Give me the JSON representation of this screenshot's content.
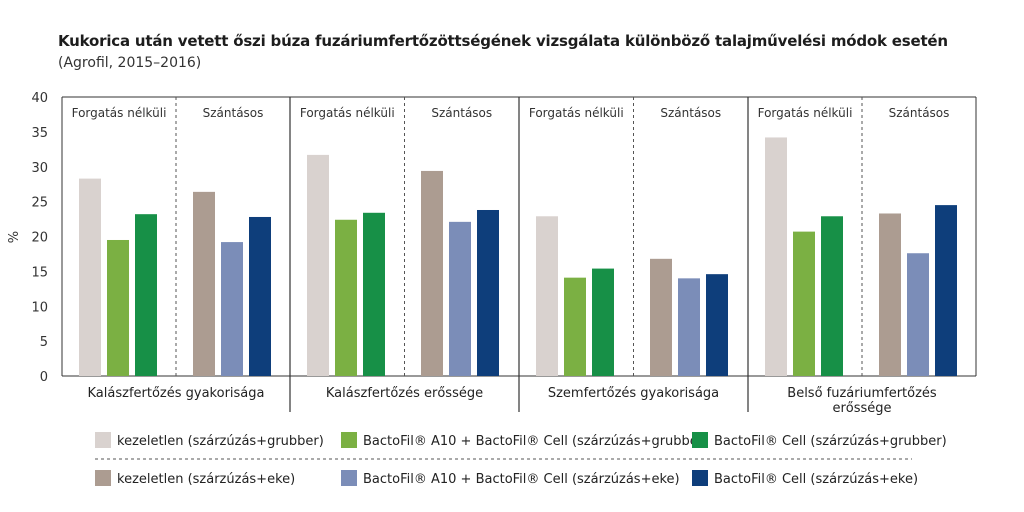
{
  "title": "Kukorica után vetett őszi búza fuzáriumfertőzöttségének vizsgálata különböző talajművelési módok esetén",
  "subtitle": "(Agrofil, 2015–2016)",
  "chart_data": {
    "type": "bar",
    "ylabel": "%",
    "ylim": [
      0,
      40
    ],
    "yticks": [
      0,
      5,
      10,
      15,
      20,
      25,
      30,
      35,
      40
    ],
    "groups": [
      {
        "label": [
          "Kalászfertőzés gyakorisága"
        ],
        "subgroups": [
          {
            "label": "Forgatás nélküli",
            "values": [
              28.3,
              19.5,
              23.2
            ]
          },
          {
            "label": "Szántásos",
            "values": [
              26.4,
              19.2,
              22.8
            ]
          }
        ]
      },
      {
        "label": [
          "Kalászfertőzés erőssége"
        ],
        "subgroups": [
          {
            "label": "Forgatás nélküli",
            "values": [
              31.7,
              22.4,
              23.4
            ]
          },
          {
            "label": "Szántásos",
            "values": [
              29.4,
              22.1,
              23.8
            ]
          }
        ]
      },
      {
        "label": [
          "Szemfertőzés gyakorisága"
        ],
        "subgroups": [
          {
            "label": "Forgatás nélküli",
            "values": [
              22.9,
              14.1,
              15.4
            ]
          },
          {
            "label": "Szántásos",
            "values": [
              16.8,
              14.0,
              14.6
            ]
          }
        ]
      },
      {
        "label": [
          "Belső fuzáriumfertőzés",
          "erőssége"
        ],
        "subgroups": [
          {
            "label": "Forgatás nélküli",
            "values": [
              34.2,
              20.7,
              22.9
            ]
          },
          {
            "label": "Szántásos",
            "values": [
              23.3,
              17.6,
              24.5
            ]
          }
        ]
      }
    ],
    "series": [
      {
        "name": "kezeletlen (szárzúzás+grubber)",
        "color": "#d9d2cf"
      },
      {
        "name": "BactoFil® A10 + BactoFil® Cell (szárzúzás+grubber)",
        "color": "#7bb043"
      },
      {
        "name": "BactoFil® Cell (szárzúzás+grubber)",
        "color": "#179047"
      },
      {
        "name": "kezeletlen (szárzúzás+eke)",
        "color": "#ac9c91"
      },
      {
        "name": "BactoFil® A10 + BactoFil® Cell (szárzúzás+eke)",
        "color": "#7b8db8"
      },
      {
        "name": "BactoFil® Cell (szárzúzás+eke)",
        "color": "#0e3e7b"
      }
    ]
  }
}
